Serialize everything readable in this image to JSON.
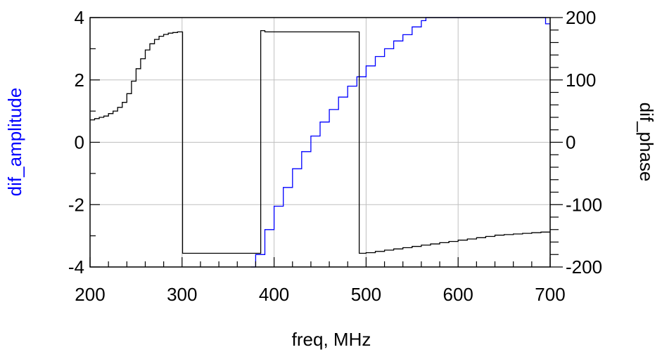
{
  "chart_data": {
    "type": "line",
    "title": "",
    "xlabel": "freq, MHz",
    "ylabel": "dif_amplitude",
    "ylabel_right": "dif_phase",
    "xlim": [
      200,
      700
    ],
    "ylim": [
      -4,
      4
    ],
    "ylim_right": [
      -200,
      200
    ],
    "grid": true,
    "x_ticks": [
      200,
      300,
      400,
      500,
      600,
      700
    ],
    "y_ticks": [
      -4,
      -2,
      0,
      2,
      4
    ],
    "y_ticks_right": [
      -200,
      -100,
      0,
      100,
      200
    ],
    "colors": {
      "dif_amplitude": "#0000ff",
      "dif_phase": "#000000",
      "ylabel": "#0000ff",
      "ylabel_right": "#000000",
      "grid": "#c0c0c0"
    },
    "series": [
      {
        "axis": "left",
        "color": "#0000ff",
        "x": [
          375,
          380,
          390,
          400,
          410,
          420,
          430,
          440,
          450,
          460,
          470,
          480,
          490,
          500,
          510,
          520,
          530,
          540,
          550,
          560,
          565,
          690,
          695,
          700
        ],
        "y": [
          -4.0,
          -3.6,
          -2.8,
          -2.05,
          -1.45,
          -0.85,
          -0.3,
          0.2,
          0.65,
          1.05,
          1.45,
          1.8,
          2.1,
          2.45,
          2.75,
          3.0,
          3.25,
          3.45,
          3.7,
          3.9,
          4.0,
          4.0,
          3.8,
          3.65
        ]
      },
      {
        "axis": "right",
        "color": "#000000",
        "x": [
          200,
          205,
          210,
          215,
          220,
          225,
          230,
          235,
          240,
          245,
          250,
          255,
          260,
          265,
          270,
          275,
          280,
          285,
          290,
          295,
          300,
          300.5,
          310,
          320,
          330,
          340,
          350,
          360,
          370,
          380,
          385,
          385.5,
          390,
          400,
          420,
          440,
          460,
          480,
          490,
          492,
          492.5,
          500,
          510,
          520,
          530,
          540,
          550,
          560,
          570,
          580,
          590,
          600,
          610,
          620,
          630,
          640,
          650,
          660,
          670,
          680,
          690,
          700
        ],
        "y": [
          36,
          38,
          40,
          42,
          46,
          50,
          56,
          64,
          78,
          98,
          118,
          134,
          148,
          158,
          165,
          170,
          173,
          175,
          176,
          177,
          177,
          -178,
          -178,
          -178,
          -178,
          -178,
          -178,
          -178,
          -178,
          -178,
          -178,
          179,
          177,
          177,
          177,
          177,
          177,
          177,
          177,
          177,
          -178,
          -177,
          -175,
          -173,
          -171,
          -169,
          -167,
          -165,
          -163,
          -161,
          -159,
          -157,
          -155,
          -153,
          -151,
          -149,
          -148,
          -147,
          -146,
          -145,
          -144,
          -143
        ]
      }
    ]
  }
}
